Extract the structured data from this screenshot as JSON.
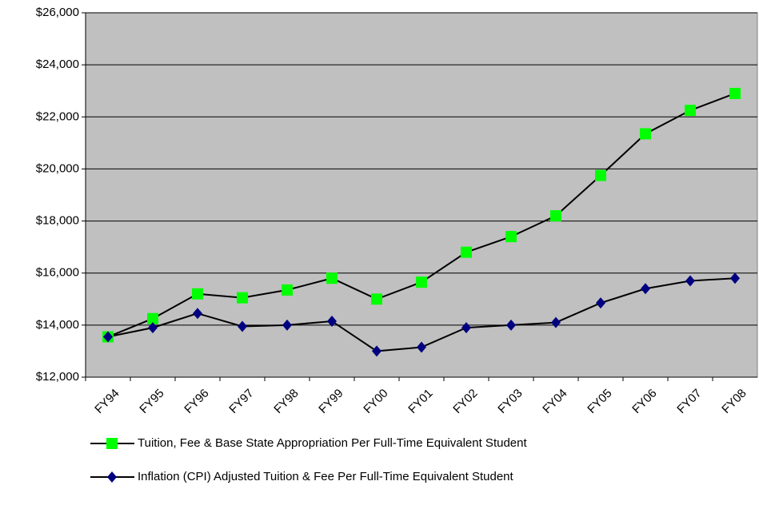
{
  "chart_data": {
    "type": "line",
    "categories": [
      "FY94",
      "FY95",
      "FY96",
      "FY97",
      "FY98",
      "FY99",
      "FY00",
      "FY01",
      "FY02",
      "FY03",
      "FY04",
      "FY05",
      "FY06",
      "FY07",
      "FY08"
    ],
    "series": [
      {
        "name": "Tuition, Fee & Base State  Appropriation Per Full-Time Equivalent Student",
        "color": "#00ff00",
        "marker": "square",
        "values": [
          13550,
          14250,
          15200,
          15050,
          15350,
          15800,
          15000,
          15650,
          16800,
          17400,
          18200,
          19750,
          21350,
          22250,
          22900
        ]
      },
      {
        "name": "Inflation (CPI) Adjusted Tuition & Fee Per Full-Time Equivalent Student",
        "color": "#000080",
        "marker": "diamond",
        "values": [
          13550,
          13900,
          14450,
          13950,
          14000,
          14150,
          13000,
          13150,
          13900,
          14000,
          14100,
          14850,
          15400,
          15700,
          15800
        ]
      }
    ],
    "ylim": [
      12000,
      26000
    ],
    "yticks": [
      {
        "value": 12000,
        "label": "$12,000"
      },
      {
        "value": 14000,
        "label": "$14,000"
      },
      {
        "value": 16000,
        "label": "$16,000"
      },
      {
        "value": 18000,
        "label": "$18,000"
      },
      {
        "value": 20000,
        "label": "$20,000"
      },
      {
        "value": 22000,
        "label": "$22,000"
      },
      {
        "value": 24000,
        "label": "$24,000"
      },
      {
        "value": 26000,
        "label": "$26,000"
      }
    ],
    "grid": true,
    "plot_background": "#c0c0c0",
    "legend": "bottom"
  }
}
